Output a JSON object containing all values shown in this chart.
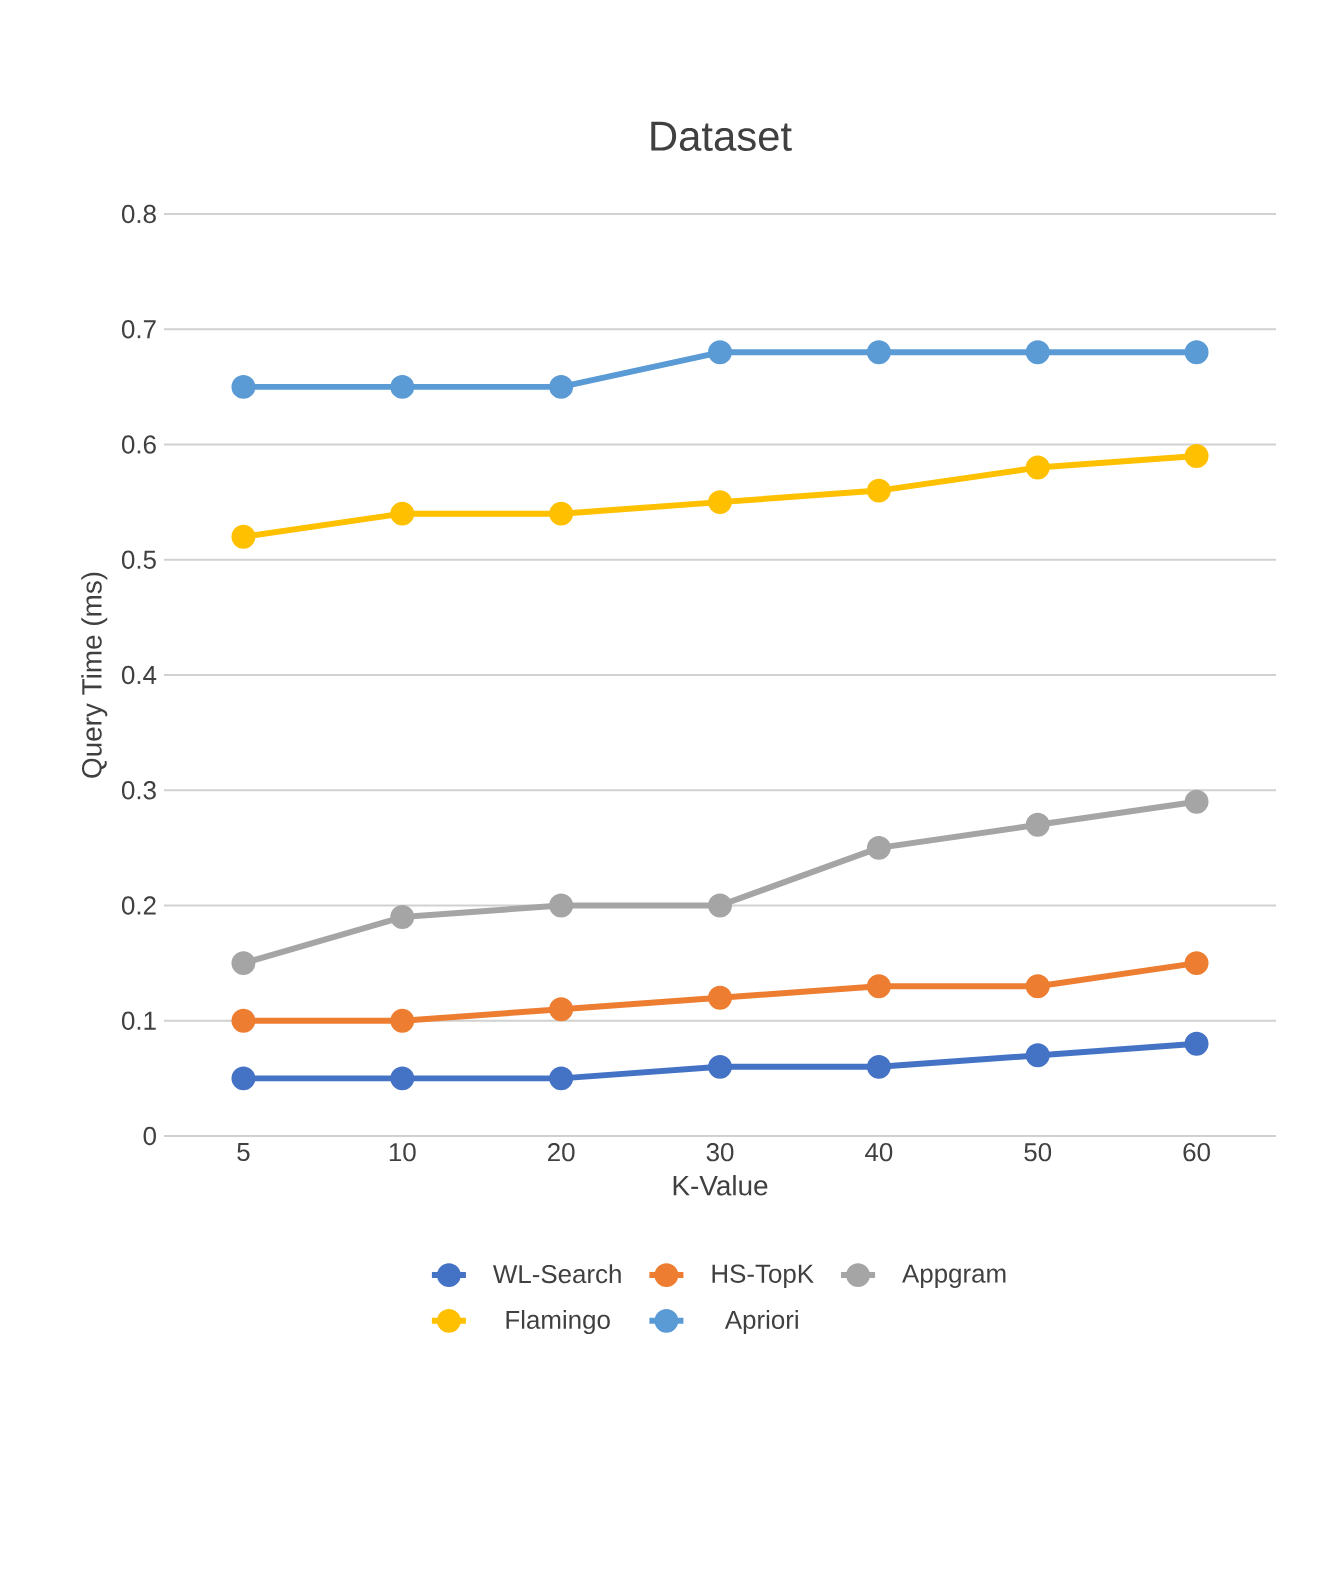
{
  "chart_data": {
    "type": "line",
    "title": "Dataset",
    "xlabel": "K-Value",
    "ylabel": "Query Time (ms)",
    "categories": [
      "5",
      "10",
      "20",
      "30",
      "40",
      "50",
      "60"
    ],
    "ylim": [
      0,
      0.8
    ],
    "yticks": [
      0,
      0.1,
      0.2,
      0.3,
      0.4,
      0.5,
      0.6,
      0.7,
      0.8
    ],
    "grid": "y",
    "legend": "bottom",
    "marker": "circle",
    "line_style": "solid",
    "series": [
      {
        "name": "WL-Search",
        "color": "#4472c4",
        "values": [
          0.05,
          0.05,
          0.05,
          0.06,
          0.06,
          0.07,
          0.08
        ]
      },
      {
        "name": "HS-TopK",
        "color": "#ed7d31",
        "values": [
          0.1,
          0.1,
          0.11,
          0.12,
          0.13,
          0.13,
          0.15
        ]
      },
      {
        "name": "Appgram",
        "color": "#a5a5a5",
        "values": [
          0.15,
          0.19,
          0.2,
          0.2,
          0.25,
          0.27,
          0.29
        ]
      },
      {
        "name": "Flamingo",
        "color": "#ffc000",
        "values": [
          0.52,
          0.54,
          0.54,
          0.55,
          0.56,
          0.58,
          0.59
        ]
      },
      {
        "name": "Apriori",
        "color": "#5b9bd5",
        "values": [
          0.65,
          0.65,
          0.65,
          0.68,
          0.68,
          0.68,
          0.68
        ]
      }
    ]
  }
}
